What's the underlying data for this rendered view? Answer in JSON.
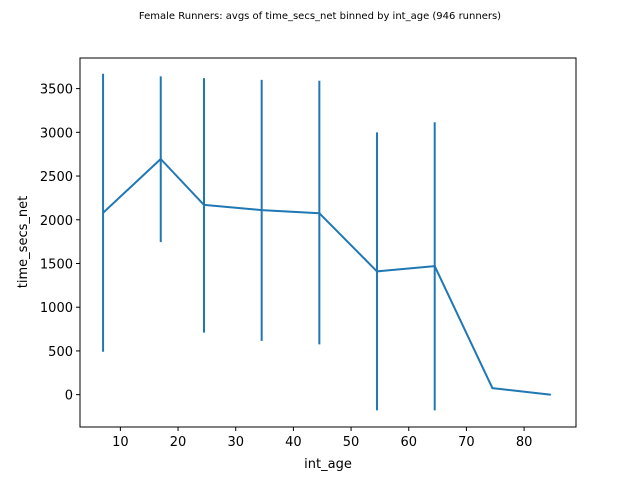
{
  "chart_data": {
    "type": "line",
    "title": "Female Runners: avgs of time_secs_net binned by int_age (946 runners)",
    "xlabel": "int_age",
    "ylabel": "time_secs_net",
    "xlim": [
      3,
      89
    ],
    "ylim": [
      -370,
      3850
    ],
    "xticks": [
      10,
      20,
      30,
      40,
      50,
      60,
      70,
      80
    ],
    "yticks": [
      0,
      500,
      1000,
      1500,
      2000,
      2500,
      3000,
      3500
    ],
    "grid": false,
    "color": "#1f77b4",
    "series": [
      {
        "x": [
          7,
          17,
          24.5,
          34.5,
          44.5,
          54.5,
          64.5,
          74.5,
          84.5
        ],
        "y": [
          2080,
          2695,
          2170,
          2110,
          2075,
          1410,
          1470,
          75,
          0
        ],
        "err_low": [
          490,
          1745,
          710,
          615,
          575,
          -180,
          -180,
          null,
          null
        ],
        "err_high": [
          3670,
          3640,
          3620,
          3600,
          3590,
          3000,
          3115,
          null,
          null
        ]
      }
    ]
  }
}
